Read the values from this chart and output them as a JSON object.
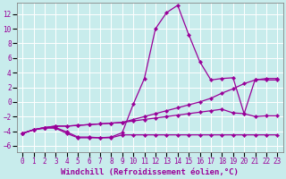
{
  "xlabel": "Windchill (Refroidissement éolien,°C)",
  "background_color": "#c8ecec",
  "grid_color": "#b8d8d8",
  "line_color": "#990099",
  "x_ticks": [
    0,
    1,
    2,
    3,
    4,
    5,
    6,
    7,
    8,
    9,
    10,
    11,
    12,
    13,
    14,
    15,
    16,
    17,
    18,
    19,
    20,
    21,
    22,
    23
  ],
  "y_ticks": [
    -6,
    -4,
    -2,
    0,
    2,
    4,
    6,
    8,
    10,
    12
  ],
  "xlim": [
    -0.5,
    23.5
  ],
  "ylim": [
    -6.8,
    13.5
  ],
  "curves": [
    {
      "x": [
        0,
        1,
        2,
        3,
        4,
        5,
        6,
        7,
        8,
        9,
        10,
        11,
        12,
        13,
        14,
        15,
        16,
        17,
        18,
        19,
        20,
        21,
        22,
        23
      ],
      "y": [
        -4.3,
        -3.8,
        -3.6,
        -3.5,
        -4.1,
        -4.8,
        -4.8,
        -4.9,
        -4.8,
        -4.2,
        -0.3,
        3.2,
        10.0,
        12.2,
        13.2,
        9.2,
        5.5,
        3.0,
        3.2,
        3.3,
        -1.6,
        3.1,
        3.0,
        3.0
      ]
    },
    {
      "x": [
        0,
        1,
        2,
        3,
        4,
        5,
        6,
        7,
        8,
        9,
        10,
        11,
        12,
        13,
        14,
        15,
        16,
        17,
        18,
        19,
        20,
        21,
        22,
        23
      ],
      "y": [
        -4.3,
        -3.8,
        -3.5,
        -3.3,
        -3.3,
        -3.2,
        -3.1,
        -3.0,
        -2.9,
        -2.8,
        -2.4,
        -2.0,
        -1.6,
        -1.2,
        -0.8,
        -0.4,
        0.0,
        0.5,
        1.2,
        1.8,
        2.5,
        3.0,
        3.2,
        3.2
      ]
    },
    {
      "x": [
        0,
        1,
        2,
        3,
        4,
        5,
        6,
        7,
        8,
        9,
        10,
        11,
        12,
        13,
        14,
        15,
        16,
        17,
        18,
        19,
        20,
        21,
        22,
        23
      ],
      "y": [
        -4.3,
        -3.8,
        -3.5,
        -3.3,
        -3.3,
        -3.2,
        -3.1,
        -3.0,
        -2.9,
        -2.8,
        -2.6,
        -2.4,
        -2.2,
        -2.0,
        -1.8,
        -1.6,
        -1.4,
        -1.2,
        -1.0,
        -1.5,
        -1.6,
        -2.0,
        -1.9,
        -1.9
      ]
    },
    {
      "x": [
        0,
        1,
        2,
        3,
        4,
        5,
        6,
        7,
        8,
        9,
        10,
        11,
        12,
        13,
        14,
        15,
        16,
        17,
        18,
        19,
        20,
        21,
        22,
        23
      ],
      "y": [
        -4.3,
        -3.8,
        -3.5,
        -3.6,
        -4.3,
        -4.9,
        -4.9,
        -4.9,
        -4.9,
        -4.5,
        -4.5,
        -4.5,
        -4.5,
        -4.5,
        -4.5,
        -4.5,
        -4.5,
        -4.5,
        -4.5,
        -4.5,
        -4.5,
        -4.5,
        -4.5,
        -4.5
      ]
    }
  ],
  "tick_fontsize": 5.5,
  "label_fontsize": 6.5
}
